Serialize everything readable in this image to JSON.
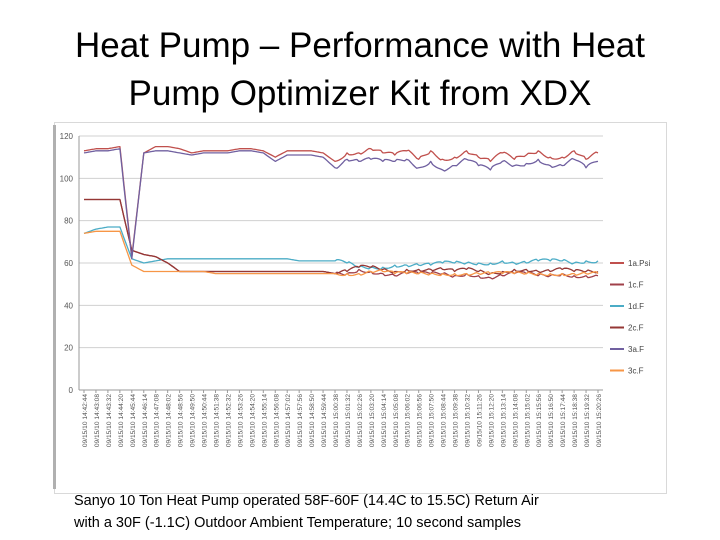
{
  "slide": {
    "title_line1": "Heat Pump – Performance with Heat",
    "title_line2": "Pump Optimizer Kit from XDX",
    "caption_line1": "Sanyo 10 Ton Heat Pump operated 58F-60F (14.4C to 15.5C) Return Air",
    "caption_line2": "with a 30F (-1.1C) Outdoor Ambient Temperature; 10 second samples"
  },
  "chart_data": {
    "type": "line",
    "title": "",
    "xlabel": "",
    "ylabel": "",
    "ylim": [
      0,
      120
    ],
    "yticks": [
      0,
      20,
      40,
      60,
      80,
      100,
      120
    ],
    "grid": true,
    "legend_position": "right",
    "x": [
      "09/15/10 14:42:44",
      "09/15/10 14:43:08",
      "09/15/10 14:43:32",
      "09/15/10 14:44:20",
      "09/15/10 14:45:44",
      "09/15/10 14:46:14",
      "09/15/10 14:47:08",
      "09/15/10 14:48:02",
      "09/15/10 14:48:56",
      "09/15/10 14:49:50",
      "09/15/10 14:50:44",
      "09/15/10 14:51:38",
      "09/15/10 14:52:32",
      "09/15/10 14:53:26",
      "09/15/10 14:54:20",
      "09/15/10 14:55:14",
      "09/15/10 14:56:08",
      "09/15/10 14:57:02",
      "09/15/10 14:57:56",
      "09/15/10 14:58:50",
      "09/15/10 14:59:44",
      "09/15/10 15:00:38",
      "09/15/10 15:01:32",
      "09/15/10 15:02:26",
      "09/15/10 15:03:20",
      "09/15/10 15:04:14",
      "09/15/10 15:05:08",
      "09/15/10 15:06:02",
      "09/15/10 15:06:56",
      "09/15/10 15:07:50",
      "09/15/10 15:08:44",
      "09/15/10 15:09:38",
      "09/15/10 15:10:32",
      "09/15/10 15:11:26",
      "09/15/10 15:12:20",
      "09/15/10 15:13:14",
      "09/15/10 15:14:08",
      "09/15/10 15:15:02",
      "09/15/10 15:15:56",
      "09/15/10 15:16:50",
      "09/15/10 15:17:44",
      "09/15/10 15:18:38",
      "09/15/10 15:19:32",
      "09/15/10 15:20:26"
    ],
    "series": [
      {
        "name": "1a.Psi",
        "color": "#c0504d",
        "values": [
          113,
          114,
          114,
          115,
          63,
          112,
          115,
          115,
          114,
          112,
          113,
          113,
          113,
          114,
          114,
          113,
          110,
          113,
          113,
          113,
          112,
          108,
          112,
          112,
          114,
          112,
          111,
          113,
          109,
          113,
          109,
          110,
          113,
          110,
          108,
          112,
          109,
          111,
          113,
          110,
          110,
          113,
          109,
          112
        ]
      },
      {
        "name": "1c.F",
        "color": "#a0404a",
        "values": [
          90,
          90,
          90,
          90,
          66,
          64,
          63,
          60,
          56,
          56,
          56,
          56,
          56,
          56,
          56,
          56,
          56,
          56,
          56,
          56,
          56,
          55,
          55,
          57,
          56,
          55,
          54,
          55,
          55,
          55,
          55,
          54,
          55,
          54,
          53,
          54,
          55,
          55,
          54,
          54,
          55,
          54,
          54,
          54
        ]
      },
      {
        "name": "1d.F",
        "color": "#4bacc6",
        "values": [
          74,
          76,
          77,
          77,
          62,
          60,
          61,
          62,
          62,
          62,
          62,
          62,
          62,
          62,
          62,
          62,
          62,
          62,
          61,
          61,
          61,
          61,
          60,
          58,
          58,
          58,
          59,
          59,
          59,
          59,
          60,
          60,
          60,
          60,
          60,
          61,
          60,
          60,
          61,
          61,
          61,
          60,
          61,
          61
        ]
      },
      {
        "name": "2c.F",
        "color": "#953735",
        "values": [
          90,
          90,
          90,
          90,
          66,
          64,
          63,
          60,
          56,
          56,
          56,
          56,
          56,
          56,
          56,
          56,
          56,
          56,
          56,
          56,
          56,
          55,
          56,
          58,
          58,
          57,
          56,
          57,
          57,
          57,
          57,
          56,
          57,
          56,
          55,
          56,
          57,
          57,
          56,
          56,
          57,
          56,
          56,
          56
        ]
      },
      {
        "name": "3a.F",
        "color": "#7060a0",
        "values": [
          112,
          113,
          113,
          114,
          62,
          112,
          113,
          113,
          112,
          111,
          112,
          112,
          112,
          113,
          113,
          112,
          108,
          111,
          111,
          111,
          110,
          105,
          109,
          108,
          109,
          108,
          108,
          109,
          105,
          108,
          104,
          106,
          109,
          106,
          104,
          108,
          106,
          107,
          109,
          106,
          106,
          109,
          105,
          108
        ]
      },
      {
        "name": "3c.F",
        "color": "#f79646",
        "values": [
          74,
          75,
          75,
          75,
          59,
          56,
          56,
          56,
          56,
          56,
          56,
          55,
          55,
          55,
          55,
          55,
          55,
          55,
          55,
          55,
          55,
          55,
          55,
          55,
          56,
          56,
          55,
          55,
          55,
          55,
          55,
          55,
          55,
          55,
          55,
          55,
          55,
          55,
          55,
          55,
          55,
          55,
          55,
          55
        ]
      }
    ]
  }
}
